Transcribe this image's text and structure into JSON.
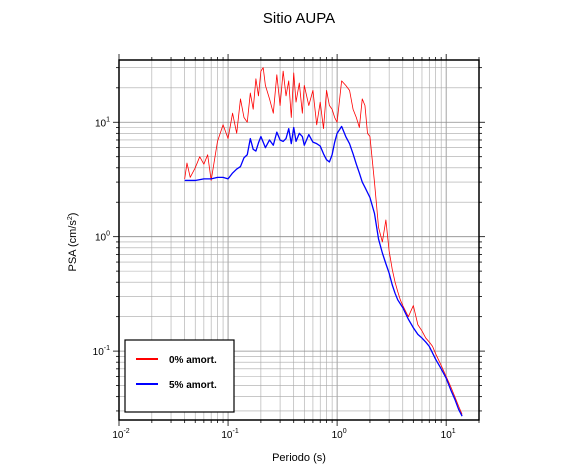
{
  "chart_data": {
    "type": "line",
    "title": "Sitio AUPA",
    "xlabel": "Periodo (s)",
    "ylabel": "PSA (cm/s",
    "ylabel_sup": "2",
    "ylabel_close": ")",
    "x_scale": "log",
    "y_scale": "log",
    "xlim": [
      0.01,
      20
    ],
    "ylim": [
      0.025,
      35
    ],
    "grid": true,
    "legend_position": "bottom-left",
    "x_ticks": [
      {
        "value": 0.01,
        "base": "10",
        "exp": "-2"
      },
      {
        "value": 0.1,
        "base": "10",
        "exp": "-1"
      },
      {
        "value": 1,
        "base": "10",
        "exp": "0"
      },
      {
        "value": 10,
        "base": "10",
        "exp": "1"
      }
    ],
    "y_ticks": [
      {
        "value": 0.1,
        "base": "10",
        "exp": "-1"
      },
      {
        "value": 1,
        "base": "10",
        "exp": "0"
      },
      {
        "value": 10,
        "base": "10",
        "exp": "1"
      }
    ],
    "series": [
      {
        "name": "0% amort.",
        "color": "#ff0000",
        "x": [
          0.04,
          0.042,
          0.045,
          0.05,
          0.055,
          0.06,
          0.065,
          0.07,
          0.08,
          0.09,
          0.1,
          0.11,
          0.12,
          0.13,
          0.14,
          0.15,
          0.16,
          0.17,
          0.18,
          0.19,
          0.2,
          0.21,
          0.22,
          0.24,
          0.26,
          0.28,
          0.3,
          0.32,
          0.34,
          0.36,
          0.38,
          0.4,
          0.42,
          0.45,
          0.48,
          0.5,
          0.55,
          0.6,
          0.65,
          0.7,
          0.75,
          0.8,
          0.85,
          0.9,
          0.95,
          1.0,
          1.1,
          1.2,
          1.3,
          1.4,
          1.5,
          1.6,
          1.7,
          1.8,
          1.9,
          2.0,
          2.2,
          2.4,
          2.6,
          2.8,
          3.0,
          3.2,
          3.4,
          3.6,
          3.8,
          4.0,
          4.5,
          5.0,
          5.5,
          6.0,
          6.5,
          7.0,
          7.5,
          8.0,
          9.0,
          10.0,
          11.0,
          12.0,
          13.0,
          14.0
        ],
        "y": [
          3.2,
          4.4,
          3.3,
          4.0,
          5.0,
          4.3,
          5.2,
          3.1,
          6.8,
          9.5,
          7.2,
          12.0,
          8.0,
          16.0,
          11.0,
          10.0,
          18.0,
          13.0,
          24.0,
          17.0,
          28.0,
          30.0,
          21.0,
          16.0,
          12.0,
          26.0,
          14.0,
          28.0,
          17.0,
          23.0,
          11.0,
          27.0,
          15.0,
          22.0,
          12.0,
          21.0,
          14.0,
          19.0,
          9.5,
          15.0,
          8.8,
          19.0,
          14.0,
          13.0,
          11.0,
          10.0,
          23.0,
          21.0,
          19.0,
          13.0,
          11.0,
          9.0,
          16.0,
          14.0,
          8.0,
          7.5,
          3.0,
          1.2,
          0.9,
          1.4,
          0.75,
          0.52,
          0.4,
          0.33,
          0.28,
          0.25,
          0.2,
          0.25,
          0.17,
          0.15,
          0.13,
          0.12,
          0.11,
          0.095,
          0.075,
          0.06,
          0.049,
          0.04,
          0.033,
          0.028
        ]
      },
      {
        "name": "5% amort.",
        "color": "#0000ff",
        "x": [
          0.04,
          0.05,
          0.06,
          0.07,
          0.08,
          0.09,
          0.1,
          0.11,
          0.12,
          0.13,
          0.14,
          0.15,
          0.16,
          0.17,
          0.18,
          0.19,
          0.2,
          0.22,
          0.24,
          0.26,
          0.28,
          0.3,
          0.32,
          0.34,
          0.36,
          0.38,
          0.4,
          0.42,
          0.45,
          0.48,
          0.5,
          0.55,
          0.6,
          0.65,
          0.7,
          0.75,
          0.8,
          0.85,
          0.9,
          0.95,
          1.0,
          1.1,
          1.2,
          1.3,
          1.4,
          1.5,
          1.6,
          1.7,
          1.8,
          2.0,
          2.2,
          2.4,
          2.6,
          2.8,
          3.0,
          3.2,
          3.4,
          3.6,
          4.0,
          4.5,
          5.0,
          5.5,
          6.0,
          6.5,
          7.0,
          8.0,
          9.0,
          10.0,
          11.0,
          12.0,
          13.0,
          14.0
        ],
        "y": [
          3.1,
          3.1,
          3.2,
          3.2,
          3.3,
          3.3,
          3.2,
          3.6,
          3.9,
          4.1,
          4.9,
          5.2,
          7.2,
          5.8,
          5.6,
          6.6,
          7.5,
          6.0,
          7.0,
          6.3,
          8.2,
          7.0,
          6.8,
          7.2,
          8.8,
          6.5,
          9.0,
          6.8,
          8.0,
          7.5,
          6.3,
          7.8,
          6.7,
          6.5,
          6.2,
          5.3,
          4.7,
          4.5,
          5.2,
          6.7,
          8.0,
          9.2,
          7.5,
          6.5,
          5.3,
          4.3,
          3.6,
          3.0,
          2.7,
          2.2,
          1.6,
          0.95,
          0.72,
          0.58,
          0.48,
          0.38,
          0.32,
          0.28,
          0.24,
          0.19,
          0.16,
          0.14,
          0.13,
          0.12,
          0.11,
          0.085,
          0.07,
          0.058,
          0.046,
          0.038,
          0.031,
          0.027
        ]
      }
    ]
  }
}
